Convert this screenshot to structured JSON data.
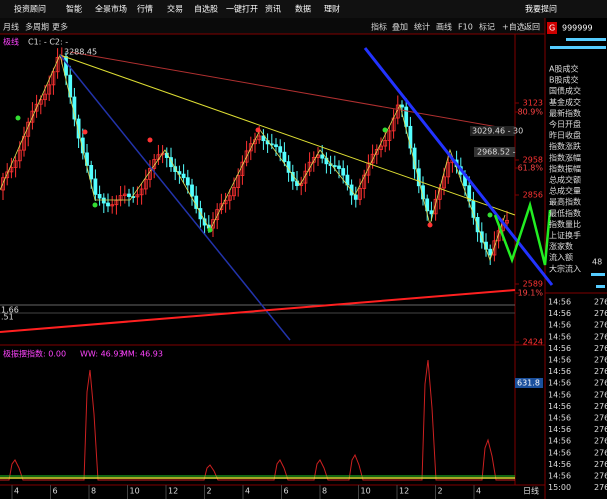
{
  "menu": {
    "items": [
      "投资顾问",
      "智能",
      "全景市场",
      "行情",
      "交易",
      "自选股",
      "一键打开",
      "资讯",
      "数据",
      "理财"
    ],
    "right": "我要提问"
  },
  "toolbar": {
    "left": [
      "月线",
      "多周期",
      "更多"
    ],
    "right": [
      "指标",
      "叠加",
      "统计",
      "画线",
      "F10",
      "标记",
      "+自选",
      "返回"
    ]
  },
  "price_panel": {
    "title": "极线",
    "legend": "C1: -   C2: -",
    "annotations": [
      "3288.45",
      "3029.46 - 30",
      "2968.52 - "
    ],
    "axis_labels": [
      3123,
      "80.9%",
      2958,
      "61.8%",
      2856,
      2589,
      "19.1%",
      2424
    ],
    "left_labels": [
      "1.66",
      ".51"
    ]
  },
  "indicator_panel": {
    "title": "极振摆指数: 0.00",
    "ww": "WW: 46.93",
    "mm": "MM: 46.93",
    "axis_label": "631.8"
  },
  "quote_panel": {
    "badge": "G",
    "code": "999999",
    "fields": [
      "A股成交",
      "B股成交",
      "国债成交",
      "基金成交",
      "最新指数",
      "今日开盘",
      "昨日收盘",
      "指数涨跌",
      "指数涨幅",
      "指数振幅",
      "总成交额",
      "总成交量",
      "最高指数",
      "最低指数",
      "指数量比",
      "上证换手",
      "涨家数",
      "流入额",
      "大宗流入"
    ],
    "up_count": "48",
    "ticks": [
      [
        "14:56",
        "276"
      ],
      [
        "14:56",
        "276"
      ],
      [
        "14:56",
        "276"
      ],
      [
        "14:56",
        "276"
      ],
      [
        "14:56",
        "276"
      ],
      [
        "14:56",
        "276"
      ],
      [
        "14:56",
        "276"
      ],
      [
        "14:56",
        "276"
      ],
      [
        "14:56",
        "276"
      ],
      [
        "14:56",
        "276"
      ],
      [
        "14:56",
        "276"
      ],
      [
        "14:56",
        "276"
      ],
      [
        "14:56",
        "276"
      ],
      [
        "14:56",
        "276"
      ],
      [
        "14:56",
        "276"
      ],
      [
        "14:56",
        "276"
      ],
      [
        "15:00",
        "276"
      ]
    ]
  },
  "timeline": {
    "labels": [
      "4",
      "6",
      "8",
      "10",
      "12",
      "2",
      "4",
      "6",
      "8",
      "10",
      "12",
      "2",
      "4"
    ],
    "period": "日线"
  }
}
